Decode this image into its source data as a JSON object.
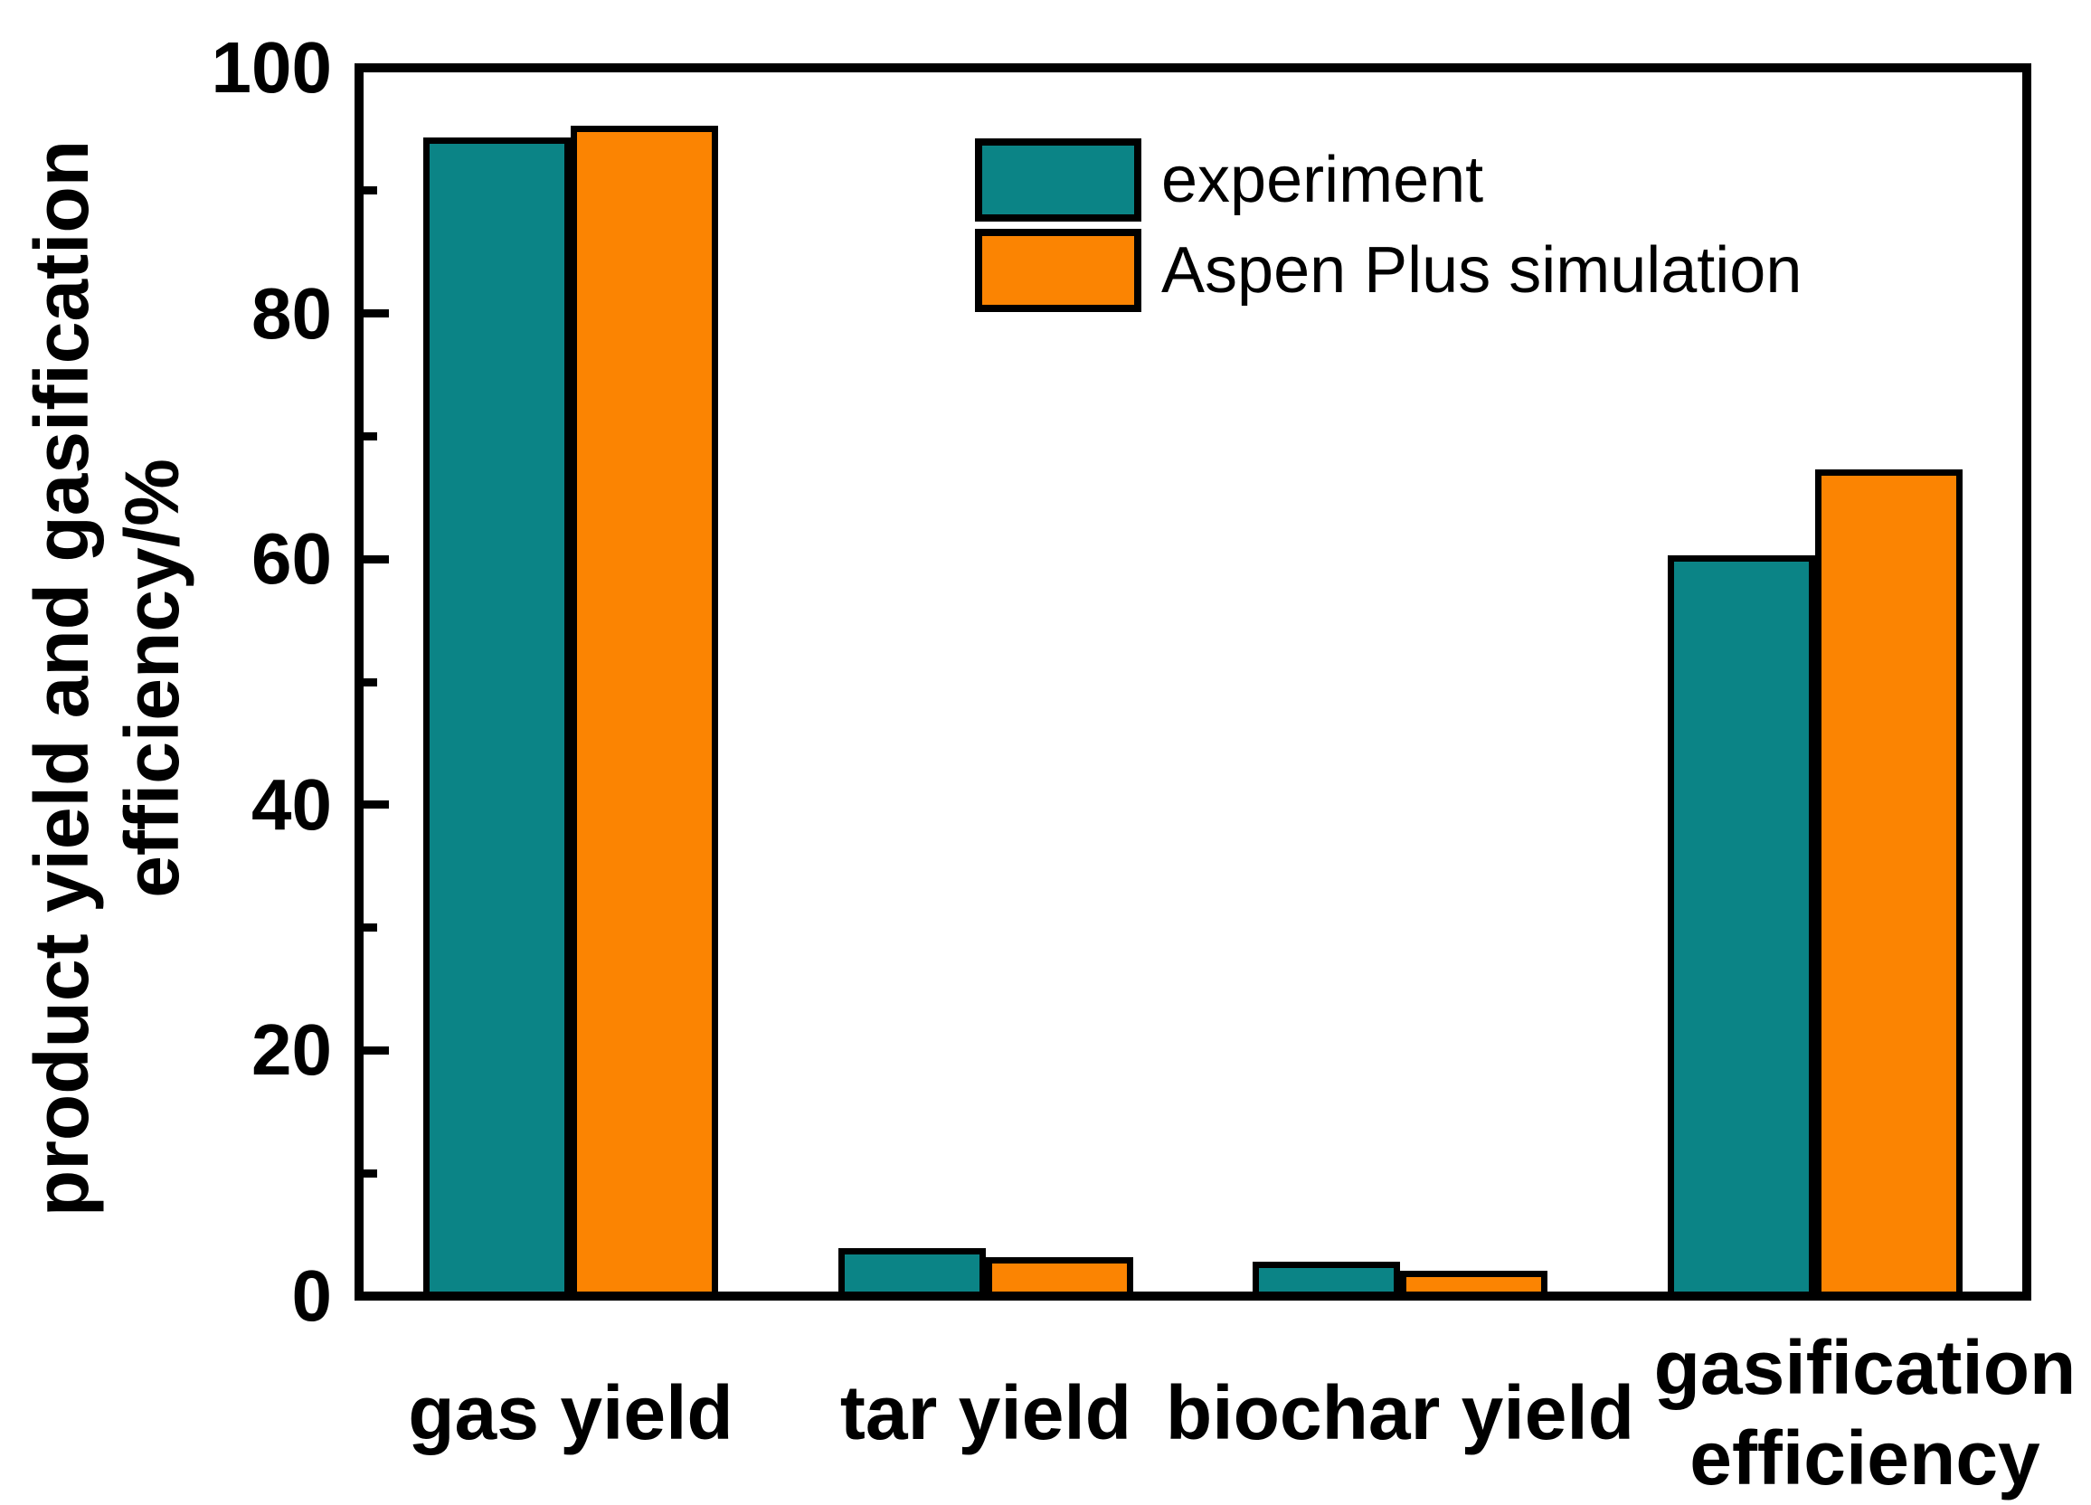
{
  "figure": {
    "background": "#ffffff",
    "y_axis_title_line1": "product yield and gasification",
    "y_axis_title_line2": "efficiency/%"
  },
  "legend": {
    "items": [
      {
        "label": "experiment",
        "color": "#0B8486"
      },
      {
        "label": "Aspen Plus simulation",
        "color": "#FB8402"
      }
    ]
  },
  "chart_data": {
    "type": "bar",
    "title": "",
    "categories": [
      "gas yield",
      "tar yield",
      "biochar yield",
      "gasification efficiency"
    ],
    "category_label_lines": [
      [
        "gas yield"
      ],
      [
        "tar yield"
      ],
      [
        "biochar yield"
      ],
      [
        "gasification",
        "efficiency"
      ]
    ],
    "series": [
      {
        "name": "experiment",
        "color": "#0B8486",
        "values": [
          94,
          3.6,
          2.5,
          60
        ]
      },
      {
        "name": "Aspen Plus simulation",
        "color": "#FB8402",
        "values": [
          95,
          2.9,
          1.8,
          67
        ]
      }
    ],
    "xlabel": "",
    "ylabel": "product yield and gasification efficiency/%",
    "ylim": [
      0,
      100
    ],
    "yticks_major": [
      0,
      20,
      40,
      60,
      80,
      100
    ],
    "ytick_labels": [
      "0",
      "20",
      "40",
      "60",
      "80",
      "100"
    ],
    "yticks_minor": [
      10,
      30,
      50,
      70,
      90
    ],
    "bar_edge_color": "#000000",
    "axis_color": "#000000",
    "grid": false,
    "legend_position": "upper center",
    "tick_direction": "in"
  }
}
